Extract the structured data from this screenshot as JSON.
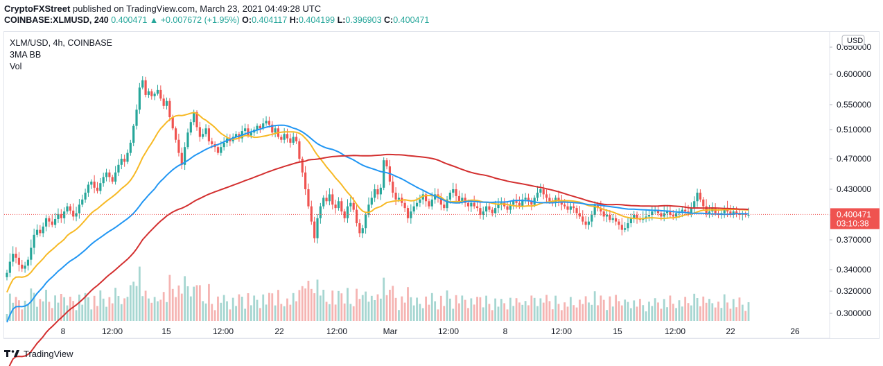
{
  "header": {
    "publisher": "CryptoFXStreet",
    "published_text": "published on TradingView.com, March 23, 2021 04:49:28 UTC",
    "symbol_full": "COINBASE:XLMUSD, 240",
    "last": "0.400471",
    "change": "+0.007672 (+1.95%)",
    "open_label": "O:",
    "open": "0.404117",
    "high_label": "H:",
    "high": "0.404199",
    "low_label": "L:",
    "low": "0.396903",
    "close_label": "C:",
    "close": "0.400471"
  },
  "legend": {
    "title": "XLM/USD, 4h, COINBASE",
    "indicator": "3MA BB",
    "volume": "Vol"
  },
  "price_axis": {
    "currency": "USD",
    "last_price_tag": "0.400471",
    "countdown_tag": "03:10:38"
  },
  "footer": {
    "brand": "TradingView"
  },
  "colors": {
    "up": "#26a69a",
    "down": "#ef5350",
    "ma_fast": "#f7b924",
    "ma_mid": "#2196f3",
    "ma_slow": "#d32f2f",
    "vol_up": "#a6d6d1",
    "vol_down": "#f5b4b2",
    "price_tag": "#ef5350"
  },
  "chart_data": {
    "type": "candlestick",
    "y_ticks": [
      "0.300000",
      "0.320000",
      "0.340000",
      "0.370000",
      "0.400000",
      "0.430000",
      "0.470000",
      "0.510000",
      "0.550000",
      "0.600000",
      "0.650000"
    ],
    "x_ticks": [
      "8",
      "12:00",
      "15",
      "12:00",
      "22",
      "12:00",
      "Mar",
      "12:00",
      "8",
      "12:00",
      "15",
      "12:00",
      "22",
      "26"
    ],
    "ylim": [
      0.292,
      0.665
    ],
    "close_path_x": [
      0,
      1,
      2,
      3,
      4,
      5,
      6,
      7,
      8,
      9,
      10,
      11,
      12,
      13,
      14,
      15,
      16,
      17,
      18,
      19,
      20,
      21,
      22,
      23,
      24,
      25,
      26,
      27,
      28,
      29,
      30,
      31,
      32,
      33,
      34,
      35,
      36,
      37,
      38,
      39,
      40,
      41,
      42,
      43,
      44,
      45,
      46,
      47,
      48,
      49,
      50,
      51,
      52,
      53,
      54,
      55,
      56,
      57,
      58,
      59,
      60,
      61,
      62,
      63,
      64,
      65,
      66,
      67,
      68,
      69,
      70,
      71,
      72,
      73,
      74,
      75,
      76,
      77,
      78,
      79,
      80,
      81,
      82,
      83,
      84,
      85,
      86,
      87,
      88,
      89,
      90,
      91,
      92,
      93,
      94,
      95,
      96,
      97,
      98,
      99,
      100,
      101,
      102,
      103,
      104,
      105,
      106,
      107,
      108,
      109,
      110,
      111,
      112,
      113,
      114,
      115,
      116,
      117,
      118,
      119,
      120,
      121,
      122,
      123,
      124,
      125,
      126,
      127,
      128,
      129,
      130,
      131,
      132,
      133,
      134,
      135,
      136,
      137,
      138,
      139,
      140,
      141,
      142,
      143,
      144,
      145,
      146,
      147,
      148,
      149,
      150,
      151,
      152,
      153,
      154,
      155,
      156,
      157,
      158,
      159,
      160,
      161,
      162,
      163,
      164,
      165,
      166,
      167,
      168,
      169,
      170,
      171,
      172,
      173,
      174,
      175,
      176,
      177,
      178,
      179,
      180,
      181,
      182,
      183,
      184,
      185,
      186,
      187,
      188,
      189,
      190,
      191,
      192,
      193,
      194,
      195,
      196,
      197,
      198,
      199,
      200,
      201,
      202,
      203,
      204,
      205,
      206,
      207,
      208,
      209,
      210,
      211,
      212,
      213,
      214,
      215,
      216,
      217,
      218,
      219,
      220,
      221,
      222,
      223,
      224,
      225,
      226,
      227,
      228,
      229,
      230,
      231,
      232,
      233,
      234,
      235,
      236,
      237,
      238,
      239,
      240,
      241,
      242,
      243,
      244,
      245,
      246,
      247,
      248,
      249
    ],
    "close": [
      0.337,
      0.348,
      0.356,
      0.352,
      0.345,
      0.341,
      0.344,
      0.35,
      0.362,
      0.376,
      0.382,
      0.378,
      0.386,
      0.396,
      0.392,
      0.388,
      0.395,
      0.401,
      0.396,
      0.404,
      0.41,
      0.405,
      0.398,
      0.402,
      0.412,
      0.418,
      0.426,
      0.436,
      0.44,
      0.432,
      0.428,
      0.438,
      0.446,
      0.452,
      0.446,
      0.44,
      0.452,
      0.462,
      0.47,
      0.466,
      0.478,
      0.492,
      0.516,
      0.542,
      0.578,
      0.59,
      0.566,
      0.572,
      0.564,
      0.568,
      0.574,
      0.56,
      0.548,
      0.556,
      0.53,
      0.512,
      0.496,
      0.478,
      0.462,
      0.486,
      0.506,
      0.522,
      0.538,
      0.514,
      0.5,
      0.504,
      0.512,
      0.494,
      0.49,
      0.486,
      0.478,
      0.486,
      0.492,
      0.498,
      0.494,
      0.5,
      0.504,
      0.498,
      0.508,
      0.512,
      0.502,
      0.506,
      0.51,
      0.516,
      0.512,
      0.52,
      0.524,
      0.518,
      0.506,
      0.512,
      0.5,
      0.496,
      0.504,
      0.498,
      0.492,
      0.5,
      0.494,
      0.47,
      0.452,
      0.43,
      0.41,
      0.392,
      0.372,
      0.396,
      0.41,
      0.42,
      0.416,
      0.424,
      0.412,
      0.408,
      0.416,
      0.404,
      0.396,
      0.41,
      0.414,
      0.406,
      0.39,
      0.378,
      0.384,
      0.4,
      0.412,
      0.42,
      0.43,
      0.424,
      0.432,
      0.468,
      0.46,
      0.44,
      0.426,
      0.418,
      0.42,
      0.414,
      0.408,
      0.396,
      0.404,
      0.41,
      0.414,
      0.418,
      0.424,
      0.416,
      0.41,
      0.418,
      0.424,
      0.42,
      0.412,
      0.408,
      0.418,
      0.426,
      0.43,
      0.422,
      0.416,
      0.42,
      0.414,
      0.41,
      0.414,
      0.41,
      0.408,
      0.4,
      0.404,
      0.41,
      0.406,
      0.402,
      0.408,
      0.412,
      0.414,
      0.41,
      0.406,
      0.412,
      0.416,
      0.414,
      0.41,
      0.418,
      0.42,
      0.416,
      0.412,
      0.42,
      0.426,
      0.43,
      0.424,
      0.42,
      0.416,
      0.414,
      0.42,
      0.416,
      0.412,
      0.41,
      0.406,
      0.41,
      0.408,
      0.402,
      0.398,
      0.392,
      0.388,
      0.392,
      0.4,
      0.412,
      0.408,
      0.404,
      0.398,
      0.4,
      0.394,
      0.396,
      0.392,
      0.388,
      0.382,
      0.384,
      0.39,
      0.396,
      0.4,
      0.396,
      0.394,
      0.396,
      0.398,
      0.4,
      0.404,
      0.406,
      0.402,
      0.398,
      0.402,
      0.404,
      0.4,
      0.398,
      0.402,
      0.404,
      0.406,
      0.404,
      0.402,
      0.408,
      0.416,
      0.426,
      0.418,
      0.41,
      0.402,
      0.404,
      0.408,
      0.402,
      0.4,
      0.402,
      0.408,
      0.404,
      0.4,
      0.404,
      0.402,
      0.4,
      0.401,
      0.4,
      0.4
    ]
  }
}
